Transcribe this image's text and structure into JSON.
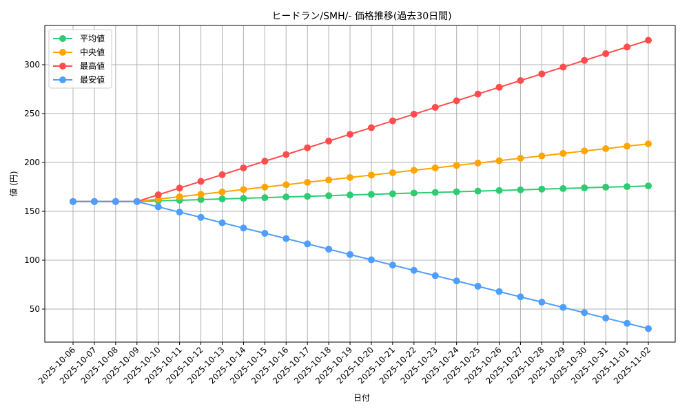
{
  "chart_data": {
    "type": "line",
    "title": "ヒードラン/SMH/- 価格推移(過去30日間)",
    "xlabel": "日付",
    "ylabel": "値 (円)",
    "ylim": [
      14,
      340
    ],
    "yticks": [
      50,
      100,
      150,
      200,
      250,
      300
    ],
    "grid": true,
    "legend_position": "upper left",
    "x": [
      "2025-10-06",
      "2025-10-07",
      "2025-10-08",
      "2025-10-09",
      "2025-10-10",
      "2025-10-11",
      "2025-10-12",
      "2025-10-13",
      "2025-10-14",
      "2025-10-15",
      "2025-10-16",
      "2025-10-17",
      "2025-10-18",
      "2025-10-19",
      "2025-10-20",
      "2025-10-21",
      "2025-10-22",
      "2025-10-23",
      "2025-10-24",
      "2025-10-25",
      "2025-10-26",
      "2025-10-27",
      "2025-10-28",
      "2025-10-29",
      "2025-10-30",
      "2025-10-31",
      "2025-11-01",
      "2025-11-02"
    ],
    "series": [
      {
        "name": "平均値",
        "color": "#2ecc71",
        "values": [
          160,
          160,
          160,
          160,
          160.7,
          161.3,
          162.0,
          162.7,
          163.3,
          164.0,
          164.7,
          165.3,
          166.0,
          166.7,
          167.3,
          168.0,
          168.7,
          169.3,
          170.0,
          170.7,
          171.3,
          172.0,
          172.7,
          173.3,
          174.0,
          174.7,
          175.3,
          176.0
        ]
      },
      {
        "name": "中央値",
        "color": "#ffa500",
        "values": [
          160,
          160,
          160,
          160,
          162.5,
          164.9,
          167.4,
          169.8,
          172.3,
          174.8,
          177.2,
          179.7,
          182.1,
          184.6,
          187.1,
          189.5,
          192.0,
          194.4,
          196.9,
          199.4,
          201.8,
          204.3,
          206.7,
          209.2,
          211.7,
          214.1,
          216.6,
          219.0
        ]
      },
      {
        "name": "最高値",
        "color": "#ff4d4d",
        "values": [
          160,
          160,
          160,
          160,
          166.9,
          173.8,
          180.6,
          187.5,
          194.4,
          201.3,
          208.1,
          215.0,
          221.9,
          228.8,
          235.6,
          242.5,
          249.4,
          256.3,
          263.1,
          270.0,
          276.9,
          283.8,
          290.6,
          297.5,
          304.4,
          311.3,
          318.1,
          325.0
        ]
      },
      {
        "name": "最安値",
        "color": "#4d9eff",
        "values": [
          160,
          160,
          160,
          160,
          154.6,
          149.2,
          143.8,
          138.3,
          132.9,
          127.5,
          122.1,
          116.7,
          111.3,
          105.8,
          100.4,
          95.0,
          89.6,
          84.2,
          78.8,
          73.3,
          67.9,
          62.5,
          57.1,
          51.7,
          46.3,
          40.8,
          35.4,
          30.0
        ]
      }
    ]
  }
}
